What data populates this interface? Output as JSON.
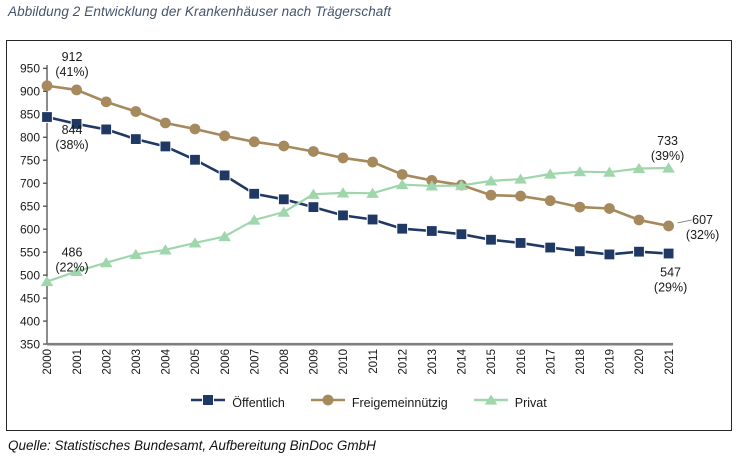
{
  "title": "Abbildung 2 Entwicklung der Krankenhäuser nach Trägerschaft",
  "source": "Quelle: Statistisches Bundesamt, Aufbereitung BinDoc GmbH",
  "colors": {
    "title": "#44546a",
    "axis_text": "#1a1a1a",
    "x_axis_line": "#7f7f7f",
    "y_axis_line": "#404040",
    "box_border": "#262626"
  },
  "chart_data": {
    "type": "line",
    "title": "Entwicklung der Krankenhäuser nach Trägerschaft",
    "xlabel": "",
    "ylabel": "",
    "x": [
      2000,
      2001,
      2002,
      2003,
      2004,
      2005,
      2006,
      2007,
      2008,
      2009,
      2010,
      2011,
      2012,
      2013,
      2014,
      2015,
      2016,
      2017,
      2018,
      2019,
      2020,
      2021
    ],
    "ylim": [
      350,
      950
    ],
    "yticks": [
      950,
      900,
      850,
      800,
      750,
      700,
      650,
      600,
      550,
      500,
      450,
      400,
      350
    ],
    "grid": false,
    "legend_position": "bottom",
    "series": [
      {
        "name": "Öffentlich",
        "marker": "square",
        "color": "#1f3864",
        "values": [
          844,
          829,
          817,
          796,
          780,
          751,
          717,
          677,
          665,
          648,
          630,
          621,
          601,
          596,
          589,
          577,
          570,
          560,
          552,
          545,
          551,
          547
        ]
      },
      {
        "name": "Freigemeinnützig",
        "marker": "circle",
        "color": "#a6895c",
        "values": [
          912,
          903,
          877,
          856,
          831,
          818,
          803,
          790,
          781,
          769,
          755,
          746,
          719,
          706,
          696,
          674,
          672,
          662,
          648,
          645,
          620,
          607
        ]
      },
      {
        "name": "Privat",
        "marker": "triangle",
        "color": "#9fd6ac",
        "values": [
          486,
          508,
          527,
          545,
          555,
          570,
          584,
          620,
          637,
          676,
          679,
          678,
          697,
          694,
          695,
          705,
          709,
          720,
          725,
          724,
          732,
          733
        ]
      }
    ],
    "annotations": [
      {
        "series": 1,
        "year": 2000,
        "value_label": "912",
        "pct_label": "(41%)",
        "placement": "above-right"
      },
      {
        "series": 0,
        "year": 2000,
        "value_label": "844",
        "pct_label": "(38%)",
        "placement": "below-right"
      },
      {
        "series": 2,
        "year": 2000,
        "value_label": "486",
        "pct_label": "(22%)",
        "placement": "above-right"
      },
      {
        "series": 2,
        "year": 2021,
        "value_label": "733",
        "pct_label": "(39%)",
        "placement": "above"
      },
      {
        "series": 1,
        "year": 2021,
        "value_label": "607",
        "pct_label": "(32%)",
        "placement": "right"
      },
      {
        "series": 0,
        "year": 2021,
        "value_label": "547",
        "pct_label": "(29%)",
        "placement": "below"
      }
    ]
  }
}
